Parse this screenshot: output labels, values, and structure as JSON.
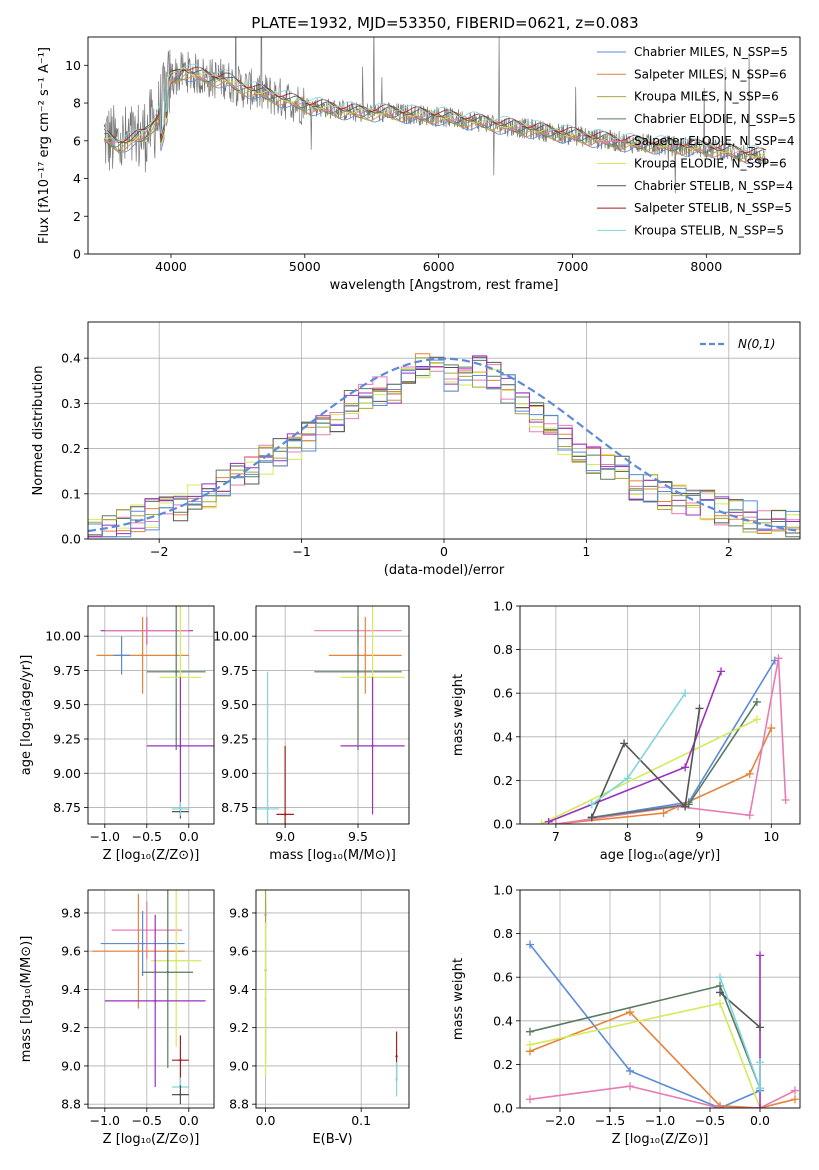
{
  "title": "PLATE=1932, MJD=53350, FIBERID=0621, z=0.083",
  "colors": {
    "chabrier_miles": "#5b8bd9",
    "salpeter_miles": "#e6843a",
    "kroupa_miles": "#a9a83c",
    "chabrier_elodie": "#5a7a5f",
    "salpeter_elodie": "#e87bb3",
    "kroupa_elodie": "#d4ea5a",
    "chabrier_stelib": "#555555",
    "salpeter_stelib": "#a31f1f",
    "kroupa_stelib": "#7fd6dc",
    "purple": "#9b30c0",
    "data": "#777777",
    "normal": "#5b8bd9"
  },
  "chart_data": [
    {
      "id": "spectrum",
      "type": "line",
      "xlabel": "wavelength [Angstrom, rest frame]",
      "ylabel": "Flux [fλ10⁻¹⁷ erg cm⁻² s⁻¹ A⁻¹]",
      "xlim": [
        3380,
        8700
      ],
      "ylim": [
        0,
        11.5
      ],
      "xticks": [
        4000,
        5000,
        6000,
        7000,
        8000
      ],
      "yticks": [
        0,
        2,
        4,
        6,
        8,
        10
      ],
      "data_continuum": {
        "x": [
          3500,
          3600,
          3700,
          3800,
          3900,
          4000,
          4100,
          4200,
          4300,
          4400,
          4500,
          4600,
          4700,
          4800,
          4900,
          5000,
          5200,
          5400,
          5600,
          5800,
          6000,
          6200,
          6400,
          6600,
          6800,
          7000,
          7200,
          7400,
          7600,
          7800,
          8000,
          8200,
          8400
        ],
        "y": [
          6.2,
          5.8,
          6.0,
          6.3,
          7.2,
          9.3,
          9.7,
          9.5,
          9.3,
          9.3,
          8.9,
          8.7,
          8.5,
          8.3,
          8.1,
          7.9,
          7.7,
          7.5,
          7.5,
          7.4,
          7.3,
          7.1,
          6.9,
          6.7,
          6.5,
          6.3,
          6.1,
          5.9,
          5.8,
          5.7,
          5.6,
          5.4,
          5.2
        ]
      },
      "legend": [
        "Chabrier MILES, N_SSP=5",
        "Salpeter MILES, N_SSP=6",
        "Kroupa MILES, N_SSP=6",
        "Chabrier ELODIE, N_SSP=5",
        "Salpeter ELODIE, N_SSP=4",
        "Kroupa ELODIE, N_SSP=6",
        "Chabrier STELIB, N_SSP=4",
        "Salpeter STELIB, N_SSP=5",
        "Kroupa STELIB, N_SSP=5"
      ]
    },
    {
      "id": "residuals",
      "type": "line",
      "xlabel": "(data-model)/error",
      "ylabel": "Normed distribution",
      "xlim": [
        -2.5,
        2.5
      ],
      "ylim": [
        0,
        0.48
      ],
      "xticks": [
        -2,
        -1,
        0,
        1,
        2
      ],
      "yticks": [
        0.0,
        0.1,
        0.2,
        0.3,
        0.4
      ],
      "legend": [
        "N(0,1)"
      ],
      "bin_width": 0.1,
      "hist_mean": [
        0.025,
        0.03,
        0.035,
        0.045,
        0.055,
        0.06,
        0.075,
        0.085,
        0.1,
        0.12,
        0.135,
        0.155,
        0.175,
        0.19,
        0.2,
        0.225,
        0.24,
        0.27,
        0.3,
        0.31,
        0.33,
        0.33,
        0.37,
        0.38,
        0.37,
        0.36,
        0.35,
        0.37,
        0.36,
        0.33,
        0.3,
        0.27,
        0.24,
        0.22,
        0.2,
        0.18,
        0.16,
        0.15,
        0.12,
        0.11,
        0.1,
        0.09,
        0.08,
        0.075,
        0.06,
        0.055,
        0.05,
        0.04,
        0.035,
        0.03
      ]
    },
    {
      "id": "age-vs-Z",
      "type": "scatter",
      "xlabel": "Z [log₁₀(Z/Z⊙)]",
      "ylabel": "age  [log₁₀(age/yr)]",
      "xlim": [
        -1.2,
        0.3
      ],
      "ylim": [
        8.63,
        10.22
      ],
      "xticks": [
        -1.0,
        -0.5,
        0.0
      ],
      "yticks": [
        8.75,
        9.0,
        9.25,
        9.5,
        9.75,
        10.0
      ],
      "points": [
        {
          "x": -0.5,
          "y": 10.04,
          "xerr": 0.55,
          "yerr": 0.1,
          "c": "purple"
        },
        {
          "x": -0.5,
          "y": 10.04,
          "xerr": 0.5,
          "yerr": 0.1,
          "c": "salpeter_elodie"
        },
        {
          "x": -0.55,
          "y": 9.86,
          "xerr": 0.55,
          "yerr": 0.28,
          "c": "salpeter_miles"
        },
        {
          "x": -0.8,
          "y": 9.86,
          "xerr": 0.1,
          "yerr": 0.14,
          "c": "chabrier_miles"
        },
        {
          "x": -0.15,
          "y": 9.74,
          "xerr": 0.35,
          "yerr": 0.57,
          "c": "chabrier_elodie"
        },
        {
          "x": -0.1,
          "y": 9.7,
          "xerr": 0.25,
          "yerr": 0.55,
          "c": "kroupa_elodie"
        },
        {
          "x": -0.1,
          "y": 9.2,
          "xerr": 0.4,
          "yerr": 0.5,
          "c": "purple"
        },
        {
          "x": -0.1,
          "y": 8.72,
          "xerr": 0.1,
          "yerr": 0.05,
          "c": "chabrier_stelib"
        },
        {
          "x": -0.1,
          "y": 8.74,
          "xerr": 0.1,
          "yerr": 0.05,
          "c": "kroupa_stelib"
        }
      ]
    },
    {
      "id": "age-vs-mass",
      "type": "scatter",
      "xlabel": "mass [log₁₀(M/M⊙)]",
      "ylabel": "",
      "xlim": [
        8.8,
        9.85
      ],
      "ylim": [
        8.63,
        10.22
      ],
      "xticks": [
        9.0,
        9.5
      ],
      "yticks": [
        8.75,
        9.0,
        9.25,
        9.5,
        9.75,
        10.0
      ],
      "points": [
        {
          "x": 9.5,
          "y": 10.04,
          "xerr": 0.3,
          "yerr": 0.1,
          "c": "salpeter_elodie"
        },
        {
          "x": 9.55,
          "y": 9.86,
          "xerr": 0.25,
          "yerr": 0.28,
          "c": "salpeter_miles"
        },
        {
          "x": 9.5,
          "y": 9.74,
          "xerr": 0.3,
          "yerr": 0.57,
          "c": "chabrier_elodie"
        },
        {
          "x": 9.6,
          "y": 9.7,
          "xerr": 0.22,
          "yerr": 0.55,
          "c": "kroupa_elodie"
        },
        {
          "x": 9.6,
          "y": 9.2,
          "xerr": 0.22,
          "yerr": 0.5,
          "c": "purple"
        },
        {
          "x": 8.88,
          "y": 8.74,
          "xerr": 0.08,
          "yerr": 1.0,
          "c": "kroupa_stelib"
        },
        {
          "x": 9.0,
          "y": 8.7,
          "xerr": 0.06,
          "yerr": 0.5,
          "c": "salpeter_stelib"
        }
      ]
    },
    {
      "id": "weight-vs-age",
      "type": "line",
      "xlabel": "age  [log₁₀(age/yr)]",
      "ylabel": "mass weight",
      "xlim": [
        6.5,
        10.4
      ],
      "ylim": [
        0,
        1.0
      ],
      "xticks": [
        7,
        8,
        9,
        10
      ],
      "yticks": [
        0.0,
        0.2,
        0.4,
        0.6,
        0.8,
        1.0
      ],
      "series": [
        {
          "c": "chabrier_miles",
          "x": [
            7.5,
            8.85,
            10.05
          ],
          "y": [
            0.03,
            0.1,
            0.75
          ]
        },
        {
          "c": "salpeter_miles",
          "x": [
            7.0,
            8.5,
            9.7,
            10.0
          ],
          "y": [
            0.0,
            0.05,
            0.23,
            0.44
          ]
        },
        {
          "c": "salpeter_elodie",
          "x": [
            7.0,
            8.7,
            9.7,
            10.1,
            10.2
          ],
          "y": [
            0.0,
            0.08,
            0.04,
            0.76,
            0.11
          ]
        },
        {
          "c": "chabrier_elodie",
          "x": [
            7.5,
            8.85,
            9.8
          ],
          "y": [
            0.03,
            0.09,
            0.56
          ]
        },
        {
          "c": "kroupa_elodie",
          "x": [
            6.8,
            9.8
          ],
          "y": [
            0.0,
            0.48
          ]
        },
        {
          "c": "purple",
          "x": [
            6.9,
            8.8,
            9.3
          ],
          "y": [
            0.01,
            0.26,
            0.7
          ]
        },
        {
          "c": "chabrier_stelib",
          "x": [
            7.5,
            7.95,
            8.8,
            9.0
          ],
          "y": [
            0.03,
            0.37,
            0.08,
            0.53
          ]
        },
        {
          "c": "kroupa_stelib",
          "x": [
            7.5,
            8.0,
            8.8
          ],
          "y": [
            0.09,
            0.21,
            0.6
          ]
        }
      ]
    },
    {
      "id": "mass-vs-Z",
      "type": "scatter",
      "xlabel": "Z [log₁₀(Z/Z⊙)]",
      "ylabel": "mass [log₁₀(M/M⊙)]",
      "xlim": [
        -1.2,
        0.3
      ],
      "ylim": [
        8.78,
        9.92
      ],
      "xticks": [
        -1.0,
        -0.5,
        0.0
      ],
      "yticks": [
        8.8,
        9.0,
        9.2,
        9.4,
        9.6,
        9.8
      ],
      "points": [
        {
          "x": -0.5,
          "y": 9.71,
          "xerr": 0.42,
          "yerr": 0.15,
          "c": "salpeter_elodie"
        },
        {
          "x": -0.55,
          "y": 9.64,
          "xerr": 0.5,
          "yerr": 0.17,
          "c": "chabrier_miles"
        },
        {
          "x": -0.6,
          "y": 9.6,
          "xerr": 0.55,
          "yerr": 0.3,
          "c": "salpeter_miles"
        },
        {
          "x": -0.15,
          "y": 9.55,
          "xerr": 0.3,
          "yerr": 0.45,
          "c": "kroupa_elodie"
        },
        {
          "x": -0.25,
          "y": 9.49,
          "xerr": 0.3,
          "yerr": 0.5,
          "c": "chabrier_elodie"
        },
        {
          "x": -0.4,
          "y": 9.34,
          "xerr": 0.6,
          "yerr": 0.45,
          "c": "purple"
        },
        {
          "x": -0.1,
          "y": 9.03,
          "xerr": 0.1,
          "yerr": 0.13,
          "c": "salpeter_stelib"
        },
        {
          "x": -0.1,
          "y": 8.89,
          "xerr": 0.1,
          "yerr": 0.05,
          "c": "kroupa_stelib"
        },
        {
          "x": -0.1,
          "y": 8.85,
          "xerr": 0.1,
          "yerr": 0.05,
          "c": "chabrier_stelib"
        }
      ]
    },
    {
      "id": "mass-vs-ebv",
      "type": "scatter",
      "xlabel": "E(B-V)",
      "ylabel": "",
      "xlim": [
        -0.01,
        0.15
      ],
      "ylim": [
        8.78,
        9.92
      ],
      "xticks": [
        0.0,
        0.1
      ],
      "yticks": [
        8.8,
        9.0,
        9.2,
        9.4,
        9.6,
        9.8
      ],
      "points": [
        {
          "x": 0.0,
          "y": 9.79,
          "xerr": 0,
          "yerr": 0.08,
          "c": "salpeter_elodie"
        },
        {
          "x": 0.0,
          "y": 9.5,
          "xerr": 0,
          "yerr": 0.48,
          "c": "kroupa_miles"
        },
        {
          "x": 0.0,
          "y": 9.35,
          "xerr": 0,
          "yerr": 0.4,
          "c": "kroupa_elodie"
        },
        {
          "x": 0.137,
          "y": 9.05,
          "xerr": 0,
          "yerr": 0.13,
          "c": "salpeter_stelib"
        },
        {
          "x": 0.137,
          "y": 8.93,
          "xerr": 0,
          "yerr": 0.09,
          "c": "kroupa_stelib"
        }
      ]
    },
    {
      "id": "weight-vs-Z",
      "type": "line",
      "xlabel": "Z [log₁₀(Z/Z⊙)]",
      "ylabel": "mass weight",
      "xlim": [
        -2.4,
        0.4
      ],
      "ylim": [
        0,
        1.0
      ],
      "xticks": [
        -2.0,
        -1.5,
        -1.0,
        -0.5,
        0.0
      ],
      "yticks": [
        0.0,
        0.2,
        0.4,
        0.6,
        0.8,
        1.0
      ],
      "series": [
        {
          "c": "chabrier_miles",
          "x": [
            -2.3,
            -1.3,
            -0.4,
            0.0
          ],
          "y": [
            0.75,
            0.17,
            0.0,
            0.08
          ]
        },
        {
          "c": "salpeter_miles",
          "x": [
            -2.3,
            -1.3,
            -0.4,
            0.0,
            0.35
          ],
          "y": [
            0.26,
            0.44,
            0.01,
            0.0,
            0.04
          ]
        },
        {
          "c": "salpeter_elodie",
          "x": [
            -2.3,
            -1.3,
            -0.4,
            0.0,
            0.35
          ],
          "y": [
            0.04,
            0.1,
            0.0,
            0.0,
            0.08
          ]
        },
        {
          "c": "chabrier_elodie",
          "x": [
            -2.3,
            -0.4,
            0.0
          ],
          "y": [
            0.35,
            0.56,
            0.09
          ]
        },
        {
          "c": "kroupa_elodie",
          "x": [
            -2.3,
            -0.4,
            0.0
          ],
          "y": [
            0.29,
            0.48,
            0.0
          ]
        },
        {
          "c": "purple",
          "x": [
            0.0,
            0.0
          ],
          "y": [
            0.0,
            0.7
          ]
        },
        {
          "c": "chabrier_stelib",
          "x": [
            -0.4,
            0.0
          ],
          "y": [
            0.53,
            0.37
          ]
        },
        {
          "c": "kroupa_stelib",
          "x": [
            -0.4,
            0.0,
            0.0
          ],
          "y": [
            0.6,
            0.09,
            0.21
          ]
        }
      ]
    }
  ]
}
